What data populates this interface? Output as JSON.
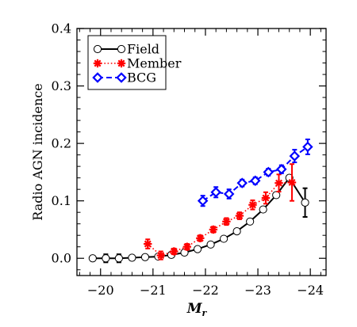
{
  "chart_data": {
    "type": "line",
    "title": "",
    "xlabel": "M",
    "xlabel_sub": "r",
    "ylabel": "Radio AGN incidence",
    "xlim": [
      -19.55,
      -24.3
    ],
    "ylim": [
      -0.03,
      0.4
    ],
    "x_reversed": true,
    "xticks": [
      -20,
      -21,
      -22,
      -23,
      -24
    ],
    "xtick_labels": [
      "−20",
      "−21",
      "−22",
      "−23",
      "−24"
    ],
    "yticks": [
      0.0,
      0.1,
      0.2,
      0.3,
      0.4
    ],
    "ytick_labels": [
      "0.0",
      "0.1",
      "0.2",
      "0.3",
      "0.4"
    ],
    "grid": false,
    "legend_position": "top-left",
    "series": [
      {
        "name": "Field",
        "color": "#000000",
        "line": "solid",
        "marker": "open-circle",
        "x": [
          -19.85,
          -20.1,
          -20.35,
          -20.6,
          -20.85,
          -21.1,
          -21.35,
          -21.6,
          -21.85,
          -22.1,
          -22.35,
          -22.6,
          -22.85,
          -23.1,
          -23.35,
          -23.6,
          -23.9
        ],
        "y": [
          0.0,
          0.0,
          0.0,
          0.001,
          0.002,
          0.003,
          0.006,
          0.01,
          0.016,
          0.024,
          0.034,
          0.047,
          0.064,
          0.085,
          0.11,
          0.14,
          0.097
        ],
        "err": [
          0,
          0.007,
          0.007,
          0,
          0,
          0,
          0,
          0,
          0,
          0,
          0,
          0,
          0,
          0,
          0,
          0,
          0.025
        ]
      },
      {
        "name": "Member",
        "color": "#ff0000",
        "line": "dotted",
        "marker": "asterisk",
        "x": [
          -20.9,
          -21.15,
          -21.4,
          -21.65,
          -21.9,
          -22.15,
          -22.4,
          -22.65,
          -22.9,
          -23.15,
          -23.4,
          -23.65
        ],
        "y": [
          0.025,
          0.005,
          0.012,
          0.02,
          0.035,
          0.05,
          0.064,
          0.074,
          0.093,
          0.105,
          0.131,
          0.132
        ],
        "err": [
          0.008,
          0.007,
          0.005,
          0.005,
          0.005,
          0.005,
          0.006,
          0.006,
          0.008,
          0.01,
          0.015,
          0.032
        ]
      },
      {
        "name": "BCG",
        "color": "#0000ff",
        "line": "dashed",
        "marker": "open-diamond",
        "x": [
          -21.95,
          -22.2,
          -22.45,
          -22.7,
          -22.95,
          -23.2,
          -23.45,
          -23.7,
          -23.95
        ],
        "y": [
          0.1,
          0.115,
          0.112,
          0.131,
          0.135,
          0.15,
          0.155,
          0.178,
          0.194
        ],
        "err": [
          0.009,
          0.009,
          0.008,
          0.006,
          0.006,
          0.006,
          0.007,
          0.011,
          0.013
        ]
      }
    ]
  }
}
